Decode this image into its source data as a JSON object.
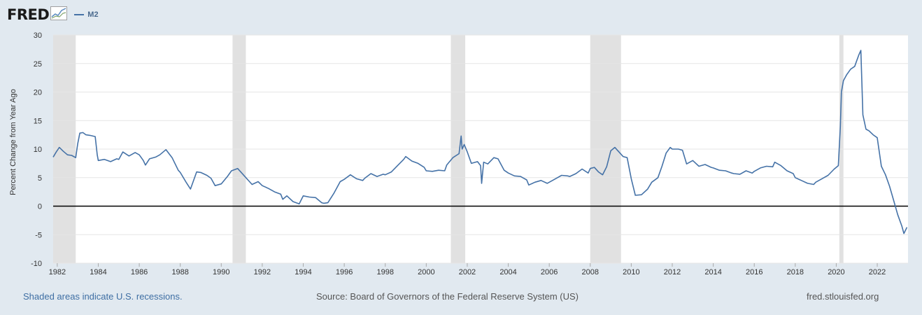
{
  "header": {
    "logo_text": "FRED",
    "legend_label": "M2"
  },
  "footer": {
    "recession_note": "Shaded areas indicate U.S. recessions.",
    "source": "Source: Board of Governors of the Federal Reserve System (US)",
    "site": "fred.stlouisfed.org"
  },
  "colors": {
    "background": "#e1e9f0",
    "plot_bg": "#ffffff",
    "series": "#4572a7",
    "recession": "#e1e1e1",
    "zero_line": "#000000"
  },
  "chart_data": {
    "type": "line",
    "title": "",
    "xlabel": "",
    "ylabel": "Percent Change from Year Ago",
    "xlim": [
      1981.8,
      2023.5
    ],
    "ylim": [
      -10,
      30
    ],
    "yticks": [
      -10,
      -5,
      0,
      5,
      10,
      15,
      20,
      25,
      30
    ],
    "xticks": [
      1982,
      1984,
      1986,
      1988,
      1990,
      1992,
      1994,
      1996,
      1998,
      2000,
      2002,
      2004,
      2006,
      2008,
      2010,
      2012,
      2014,
      2016,
      2018,
      2020,
      2022
    ],
    "grid": "horizontal",
    "legend": "top-left",
    "reference_line": 0,
    "recessions": [
      [
        1981.8,
        1982.9
      ],
      [
        1990.55,
        1991.2
      ],
      [
        2001.2,
        2001.9
      ],
      [
        2008.0,
        2009.5
      ],
      [
        2020.15,
        2020.35
      ]
    ],
    "series": [
      {
        "name": "M2",
        "x": [
          1981.8,
          1981.95,
          1982.1,
          1982.3,
          1982.5,
          1982.7,
          1982.9,
          1983.0,
          1983.1,
          1983.25,
          1983.4,
          1983.6,
          1983.85,
          1983.95,
          1984.0,
          1984.3,
          1984.6,
          1984.9,
          1985.0,
          1985.2,
          1985.5,
          1985.8,
          1986.0,
          1986.2,
          1986.3,
          1986.5,
          1986.8,
          1987.0,
          1987.3,
          1987.6,
          1987.9,
          1988.0,
          1988.3,
          1988.5,
          1988.8,
          1989.0,
          1989.3,
          1989.5,
          1989.7,
          1990.0,
          1990.3,
          1990.5,
          1990.8,
          1991.0,
          1991.3,
          1991.5,
          1991.8,
          1992.0,
          1992.3,
          1992.6,
          1992.9,
          1993.0,
          1993.2,
          1993.5,
          1993.8,
          1994.0,
          1994.3,
          1994.6,
          1994.9,
          1995.0,
          1995.2,
          1995.5,
          1995.8,
          1996.0,
          1996.3,
          1996.6,
          1996.9,
          1997.0,
          1997.3,
          1997.6,
          1997.9,
          1998.0,
          1998.3,
          1998.6,
          1998.9,
          1999.0,
          1999.3,
          1999.6,
          1999.9,
          2000.0,
          2000.3,
          2000.6,
          2000.9,
          2001.0,
          2001.3,
          2001.6,
          2001.7,
          2001.75,
          2001.85,
          2002.0,
          2002.2,
          2002.5,
          2002.65,
          2002.7,
          2002.8,
          2003.0,
          2003.3,
          2003.5,
          2003.8,
          2004.0,
          2004.3,
          2004.6,
          2004.9,
          2005.0,
          2005.3,
          2005.6,
          2005.9,
          2006.0,
          2006.3,
          2006.6,
          2006.9,
          2007.0,
          2007.3,
          2007.6,
          2007.9,
          2008.0,
          2008.2,
          2008.4,
          2008.6,
          2008.8,
          2009.0,
          2009.2,
          2009.4,
          2009.6,
          2009.8,
          2010.0,
          2010.2,
          2010.5,
          2010.8,
          2011.0,
          2011.3,
          2011.5,
          2011.7,
          2011.9,
          2012.0,
          2012.3,
          2012.5,
          2012.7,
          2013.0,
          2013.3,
          2013.6,
          2013.9,
          2014.0,
          2014.3,
          2014.6,
          2014.9,
          2015.0,
          2015.3,
          2015.6,
          2015.9,
          2016.0,
          2016.3,
          2016.6,
          2016.9,
          2017.0,
          2017.3,
          2017.6,
          2017.9,
          2018.0,
          2018.3,
          2018.6,
          2018.9,
          2019.0,
          2019.3,
          2019.6,
          2019.9,
          2020.0,
          2020.1,
          2020.2,
          2020.25,
          2020.35,
          2020.5,
          2020.7,
          2020.9,
          2021.0,
          2021.1,
          2021.2,
          2021.3,
          2021.45,
          2021.6,
          2021.8,
          2022.0,
          2022.2,
          2022.4,
          2022.6,
          2022.8,
          2023.0,
          2023.2,
          2023.3,
          2023.45
        ],
        "values": [
          8.6,
          9.5,
          10.3,
          9.6,
          9.0,
          8.9,
          8.5,
          11.0,
          12.8,
          12.9,
          12.5,
          12.4,
          12.2,
          9.0,
          8.0,
          8.2,
          7.8,
          8.3,
          8.2,
          9.5,
          8.8,
          9.4,
          9.0,
          8.0,
          7.2,
          8.3,
          8.6,
          9.0,
          9.9,
          8.5,
          6.3,
          5.9,
          4.1,
          3.0,
          6.0,
          5.9,
          5.4,
          4.9,
          3.6,
          3.9,
          5.2,
          6.2,
          6.6,
          5.8,
          4.6,
          3.8,
          4.3,
          3.6,
          3.1,
          2.5,
          2.1,
          1.2,
          1.8,
          0.8,
          0.4,
          1.8,
          1.6,
          1.5,
          0.6,
          0.5,
          0.6,
          2.3,
          4.3,
          4.7,
          5.5,
          4.8,
          4.5,
          4.9,
          5.7,
          5.2,
          5.6,
          5.5,
          6.0,
          7.1,
          8.2,
          8.7,
          7.9,
          7.5,
          6.8,
          6.2,
          6.1,
          6.3,
          6.2,
          7.2,
          8.5,
          9.2,
          12.3,
          10.0,
          10.8,
          9.5,
          7.5,
          7.8,
          7.1,
          4.0,
          7.7,
          7.4,
          8.5,
          8.3,
          6.3,
          5.8,
          5.3,
          5.2,
          4.6,
          3.7,
          4.2,
          4.5,
          4.0,
          4.2,
          4.8,
          5.4,
          5.3,
          5.2,
          5.7,
          6.5,
          5.8,
          6.6,
          6.8,
          6.0,
          5.5,
          6.9,
          9.7,
          10.3,
          9.5,
          8.7,
          8.5,
          4.8,
          1.9,
          2.0,
          3.0,
          4.2,
          5.0,
          7.0,
          9.3,
          10.3,
          10.0,
          10.0,
          9.8,
          7.4,
          8.0,
          7.0,
          7.3,
          6.8,
          6.7,
          6.3,
          6.2,
          5.8,
          5.7,
          5.6,
          6.2,
          5.8,
          6.1,
          6.7,
          7.0,
          6.9,
          7.7,
          7.1,
          6.2,
          5.7,
          5.0,
          4.5,
          4.0,
          3.8,
          4.2,
          4.8,
          5.4,
          6.5,
          6.8,
          7.1,
          14.0,
          20.0,
          22.0,
          23.0,
          24.0,
          24.5,
          25.5,
          26.5,
          27.3,
          16.0,
          13.5,
          13.2,
          12.5,
          12.0,
          7.0,
          5.5,
          3.5,
          1.0,
          -1.5,
          -3.5,
          -4.8,
          -3.7
        ]
      }
    ]
  }
}
